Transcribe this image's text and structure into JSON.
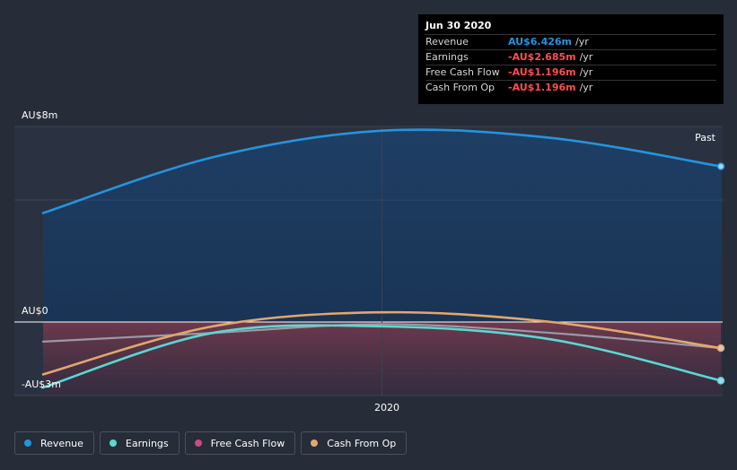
{
  "tooltip": {
    "date": "Jun 30 2020",
    "rows": [
      {
        "label": "Revenue",
        "value": "AU$6.426m",
        "unit": "/yr",
        "color": "#2394df"
      },
      {
        "label": "Earnings",
        "value": "-AU$2.685m",
        "unit": "/yr",
        "color": "#ff4d4d"
      },
      {
        "label": "Free Cash Flow",
        "value": "-AU$1.196m",
        "unit": "/yr",
        "color": "#ff4d4d"
      },
      {
        "label": "Cash From Op",
        "value": "-AU$1.196m",
        "unit": "/yr",
        "color": "#ff4d4d"
      }
    ]
  },
  "past_label": "Past",
  "legend": [
    {
      "label": "Revenue",
      "color": "#2394df"
    },
    {
      "label": "Earnings",
      "color": "#58d9d4"
    },
    {
      "label": "Free Cash Flow",
      "color": "#c94b83"
    },
    {
      "label": "Cash From Op",
      "color": "#e2a86b"
    }
  ],
  "chart_data": {
    "type": "line",
    "x": [
      2019.5,
      2019.75,
      2020.0,
      2020.25,
      2020.5
    ],
    "xlim": [
      2019.5,
      2020.5
    ],
    "x_ticks": [
      {
        "value": 2020.0,
        "label": "2020"
      }
    ],
    "ylim": [
      -3.0,
      8.0
    ],
    "y_ticks": [
      {
        "value": 8.0,
        "label": "AU$8m"
      },
      {
        "value": 0.0,
        "label": "AU$0"
      },
      {
        "value": -3.0,
        "label": "-AU$3m"
      }
    ],
    "series": [
      {
        "name": "Revenue",
        "color": "#2394df",
        "values": [
          4.5,
          6.8,
          7.9,
          7.6,
          6.426
        ]
      },
      {
        "name": "Earnings",
        "color": "#58d9d4",
        "values": [
          -3.0,
          -0.5,
          -0.2,
          -0.8,
          -2.685
        ]
      },
      {
        "name": "Free Cash Flow",
        "color": "#c94b83",
        "values": [
          -0.9,
          -0.5,
          -0.1,
          -0.5,
          -1.196
        ]
      },
      {
        "name": "Cash From Op",
        "color": "#e2a86b",
        "values": [
          -2.4,
          -0.2,
          0.4,
          0.0,
          -1.196
        ]
      }
    ]
  }
}
